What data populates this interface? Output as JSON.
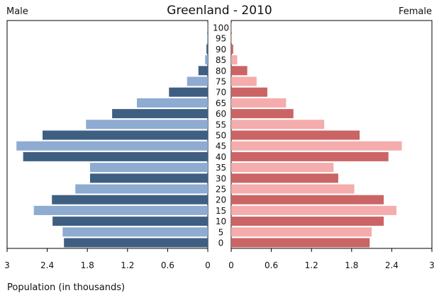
{
  "chart_data": {
    "type": "bar",
    "title": "Greenland - 2010",
    "left_label": "Male",
    "right_label": "Female",
    "xlabel": "Population (in thousands)",
    "age_groups": [
      "0",
      "5",
      "10",
      "15",
      "20",
      "25",
      "30",
      "35",
      "40",
      "45",
      "50",
      "55",
      "60",
      "65",
      "70",
      "75",
      "80",
      "85",
      "90",
      "95",
      "100"
    ],
    "xlim": [
      0,
      3
    ],
    "x_ticks_male": [
      "3",
      "2.4",
      "1.8",
      "1.2",
      "0.6",
      "0"
    ],
    "x_ticks_female": [
      "0",
      "0.6",
      "1.2",
      "1.8",
      "2.4",
      "3"
    ],
    "grid": false,
    "series": [
      {
        "name": "Male",
        "side": "left",
        "values": [
          2.15,
          2.17,
          2.32,
          2.6,
          2.33,
          1.98,
          1.76,
          1.76,
          2.76,
          2.86,
          2.47,
          1.82,
          1.43,
          1.06,
          0.58,
          0.31,
          0.14,
          0.04,
          0.02,
          0.01,
          0.005
        ],
        "colors": [
          "#3f5f82",
          "#8eabd1"
        ]
      },
      {
        "name": "Female",
        "side": "right",
        "values": [
          2.07,
          2.1,
          2.28,
          2.47,
          2.28,
          1.84,
          1.6,
          1.53,
          2.35,
          2.55,
          1.92,
          1.39,
          0.93,
          0.82,
          0.54,
          0.38,
          0.24,
          0.09,
          0.03,
          0.01,
          0.005
        ],
        "colors": [
          "#cb6464",
          "#f4acac"
        ]
      }
    ]
  }
}
